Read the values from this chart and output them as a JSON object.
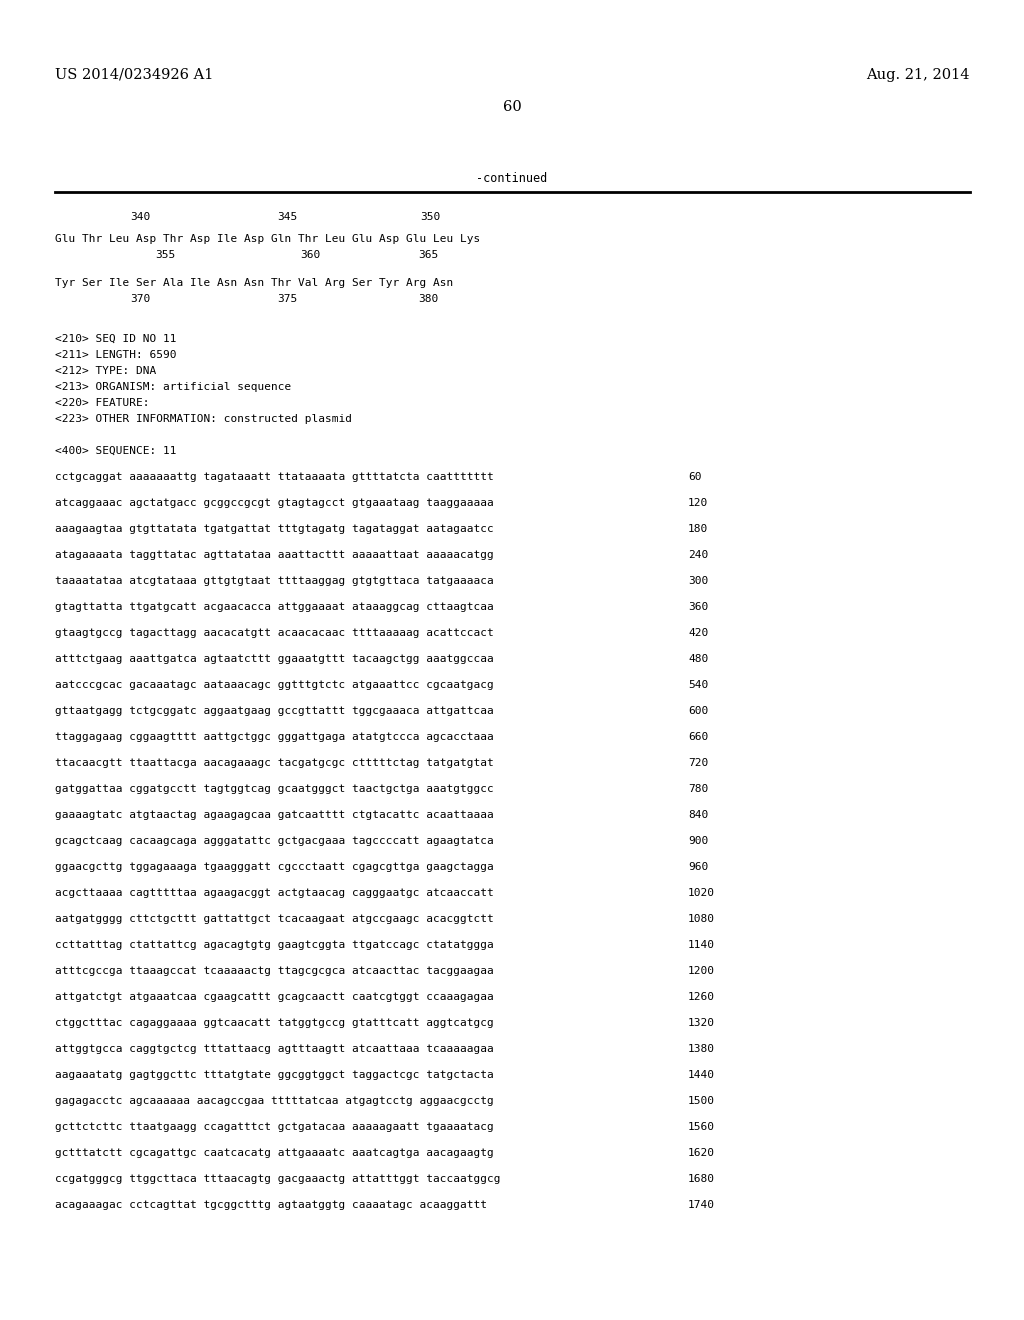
{
  "header_left": "US 2014/0234926 A1",
  "header_right": "Aug. 21, 2014",
  "page_number": "60",
  "continued_label": "-continued",
  "background_color": "#ffffff",
  "text_color": "#000000",
  "font_size_header": 10.5,
  "font_size_mono": 8.0,
  "seq_info_lines": [
    "<210> SEQ ID NO 11",
    "<211> LENGTH: 6590",
    "<212> TYPE: DNA",
    "<213> ORGANISM: artificial sequence",
    "<220> FEATURE:",
    "<223> OTHER INFORMATION: constructed plasmid"
  ],
  "sequence_label": "<400> SEQUENCE: 11",
  "aa_num_line1": "         340                   345                   350",
  "aa_seq_line1": "Glu Thr Leu Asp Thr Asp Ile Asp Gln Thr Leu Glu Asp Glu Leu Lys",
  "aa_sub_line1": "              355                    360              365",
  "aa_seq_line2": "Tyr Ser Ile Ser Ala Ile Asn Asn Thr Val Arg Ser Tyr Arg Asn",
  "aa_sub_line2": "         370                   375                   380",
  "dna_lines": [
    [
      "cctgcaggat aaaaaaattg tagataaatt ttataaaata gttttatcta caattttttt",
      "60"
    ],
    [
      "atcaggaaac agctatgacc gcggccgcgt gtagtagcct gtgaaataag taaggaaaaa",
      "120"
    ],
    [
      "aaagaagtaa gtgttatata tgatgattat tttgtagatg tagataggat aatagaatcc",
      "180"
    ],
    [
      "atagaaaata taggttatac agttatataa aaattacttt aaaaattaat aaaaacatgg",
      "240"
    ],
    [
      "taaaatataa atcgtataaa gttgtgtaat ttttaaggag gtgtgttaca tatgaaaaca",
      "300"
    ],
    [
      "gtagttatta ttgatgcatt acgaacacca attggaaaat ataaaggcag cttaagtcaa",
      "360"
    ],
    [
      "gtaagtgccg tagacttagg aacacatgtt acaacacaac ttttaaaaag acattccact",
      "420"
    ],
    [
      "atttctgaag aaattgatca agtaatcttt ggaaatgttt tacaagctgg aaatggccaa",
      "480"
    ],
    [
      "aatcccgcac gacaaatagc aataaacagc ggtttgtctc atgaaattcc cgcaatgacg",
      "540"
    ],
    [
      "gttaatgagg tctgcggatc aggaatgaag gccgttattt tggcgaaaca attgattcaa",
      "600"
    ],
    [
      "ttaggagaag cggaagtttt aattgctggc gggattgaga atatgtccca agcacctaaa",
      "660"
    ],
    [
      "ttacaacgtt ttaattacga aacagaaagc tacgatgcgc ctttttctag tatgatgtat",
      "720"
    ],
    [
      "gatggattaa cggatgcctt tagtggtcag gcaatgggct taactgctga aaatgtggcc",
      "780"
    ],
    [
      "gaaaagtatc atgtaactag agaagagcaa gatcaatttt ctgtacattc acaattaaaa",
      "840"
    ],
    [
      "gcagctcaag cacaagcaga agggatattc gctgacgaaa tagccccatt agaagtatca",
      "900"
    ],
    [
      "ggaacgcttg tggagaaaga tgaagggatt cgccctaatt cgagcgttga gaagctagga",
      "960"
    ],
    [
      "acgcttaaaa cagtttttaa agaagacggt actgtaacag cagggaatgc atcaaccatt",
      "1020"
    ],
    [
      "aatgatgggg cttctgcttt gattattgct tcacaagaat atgccgaagc acacggtctt",
      "1080"
    ],
    [
      "ccttatttag ctattattcg agacagtgtg gaagtcggta ttgatccagc ctatatggga",
      "1140"
    ],
    [
      "atttcgccga ttaaagccat tcaaaaactg ttagcgcgca atcaacttac tacggaagaa",
      "1200"
    ],
    [
      "attgatctgt atgaaatcaa cgaagcattt gcagcaactt caatcgtggt ccaaagagaa",
      "1260"
    ],
    [
      "ctggctttac cagaggaaaa ggtcaacatt tatggtgccg gtatttcatt aggtcatgcg",
      "1320"
    ],
    [
      "attggtgcca caggtgctcg tttattaacg agtttaagtt atcaattaaa tcaaaaagaa",
      "1380"
    ],
    [
      "aagaaatatg gagtggcttc tttatgtate ggcggtggct taggactcgc tatgctacta",
      "1440"
    ],
    [
      "gagagacctc agcaaaaaa aacagccgaa tttttatcaa atgagtcctg aggaacgcctg",
      "1500"
    ],
    [
      "gcttctcttc ttaatgaagg ccagatttct gctgatacaa aaaaagaatt tgaaaatacg",
      "1560"
    ],
    [
      "gctttatctt cgcagattgc caatcacatg attgaaaatc aaatcagtga aacagaagtg",
      "1620"
    ],
    [
      "ccgatgggcg ttggcttaca tttaacagtg gacgaaactg attatttggt taccaatggcg",
      "1680"
    ],
    [
      "acagaaagac cctcagttat tgcggctttg agtaatggtg caaaatagc acaaggattt",
      "1740"
    ]
  ]
}
